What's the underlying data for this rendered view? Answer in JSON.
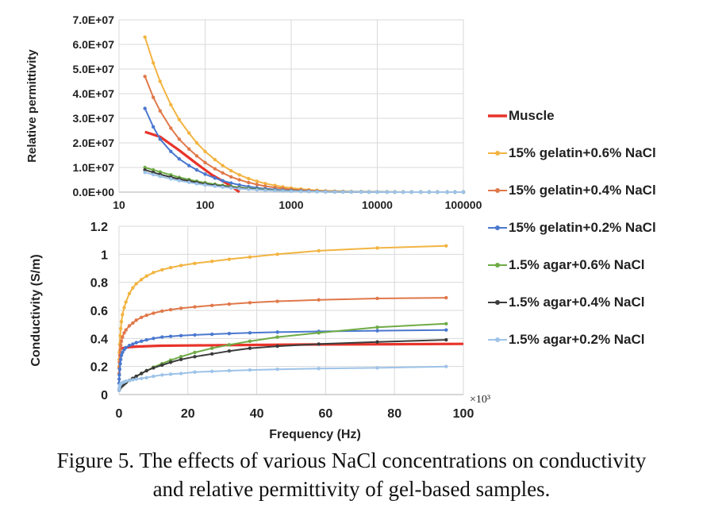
{
  "figure": {
    "caption_line1": "Figure 5. The effects of various NaCl concentrations on conductivity",
    "caption_line2": "and relative permittivity of gel-based samples."
  },
  "legend": [
    {
      "name": "Muscle",
      "color": "#e8332a"
    },
    {
      "name": "15% gelatin+0.6% NaCl",
      "color": "#f2b441"
    },
    {
      "name": "15% gelatin+0.4% NaCl",
      "color": "#e0784a"
    },
    {
      "name": "15% gelatin+0.2% NaCl",
      "color": "#4a78cf"
    },
    {
      "name": "1.5% agar+0.6% NaCl",
      "color": "#6fab45"
    },
    {
      "name": "1.5% agar+0.4% NaCl",
      "color": "#3b3b3b"
    },
    {
      "name": "1.5% agar+0.2% NaCl",
      "color": "#9ec3e8"
    }
  ],
  "chart_data": [
    {
      "type": "line",
      "title": "",
      "xlabel": "",
      "ylabel": "Relative permittivity",
      "xscale": "log",
      "xlim": [
        10,
        100000
      ],
      "ylim": [
        0,
        70000000
      ],
      "x_ticks": [
        "10",
        "100",
        "1000",
        "10000",
        "100000"
      ],
      "y_ticks": [
        "0.0E+00",
        "1.0E+07",
        "2.0E+07",
        "3.0E+07",
        "4.0E+07",
        "5.0E+07",
        "6.0E+07",
        "7.0E+07"
      ],
      "grid": true,
      "series": [
        {
          "name": "Muscle",
          "color": "#e8332a",
          "markers": false,
          "x": [
            20,
            30,
            50,
            80,
            120,
            200,
            250
          ],
          "y": [
            24500000,
            22500000,
            17000000,
            11500000,
            7000000,
            2500000,
            0
          ]
        },
        {
          "name": "15% gelatin+0.6% NaCl",
          "color": "#f2b441",
          "markers": true,
          "x": [
            20,
            25,
            30,
            40,
            50,
            65,
            80,
            100,
            130,
            160,
            200,
            250,
            320,
            400,
            500,
            650,
            800,
            1000,
            1300,
            1600,
            2000,
            2500,
            3200,
            4000,
            5000,
            6500,
            8000,
            10000,
            13000,
            16000,
            20000,
            25000,
            32000,
            40000,
            50000,
            65000,
            80000,
            100000
          ],
          "y": [
            63000000,
            52500000,
            45000000,
            35500000,
            29500000,
            24000000,
            20000000,
            16500000,
            13200000,
            10800000,
            8700000,
            7000000,
            5500000,
            4400000,
            3500000,
            2700000,
            2100000,
            1650000,
            1250000,
            950000,
            700000,
            520000,
            380000,
            280000,
            200000,
            140000,
            100000,
            70000,
            48000,
            34000,
            24000,
            16000,
            11000,
            7000,
            4500,
            3000,
            2000,
            1200
          ]
        },
        {
          "name": "15% gelatin+0.4% NaCl",
          "color": "#e0784a",
          "markers": true,
          "x": [
            20,
            25,
            30,
            40,
            50,
            65,
            80,
            100,
            130,
            160,
            200,
            250,
            320,
            400,
            500,
            650,
            800,
            1000,
            1300,
            1600,
            2000,
            2500,
            3200,
            4000,
            5000,
            6500,
            8000,
            10000,
            13000,
            16000,
            20000,
            25000,
            32000,
            40000,
            50000,
            65000,
            80000,
            100000
          ],
          "y": [
            47000000,
            38500000,
            33000000,
            26000000,
            21500000,
            17500000,
            14700000,
            12000000,
            9500000,
            7800000,
            6200000,
            5000000,
            3900000,
            3100000,
            2400000,
            1850000,
            1450000,
            1100000,
            830000,
            630000,
            470000,
            350000,
            250000,
            180000,
            130000,
            90000,
            65000,
            45000,
            31000,
            22000,
            15000,
            10000,
            7000,
            4500,
            3000,
            2000,
            1300,
            800
          ]
        },
        {
          "name": "15% gelatin+0.2% NaCl",
          "color": "#4a78cf",
          "markers": true,
          "x": [
            20,
            25,
            30,
            40,
            50,
            65,
            80,
            100,
            130,
            160,
            200,
            250,
            320,
            400,
            500,
            650,
            800,
            1000,
            1300,
            1600,
            2000,
            2500,
            3200,
            4000,
            5000,
            6500,
            8000,
            10000,
            13000,
            16000,
            20000,
            25000,
            32000,
            40000,
            50000,
            65000,
            80000,
            100000
          ],
          "y": [
            34000000,
            26500000,
            21500000,
            16500000,
            13500000,
            10800000,
            9000000,
            7300000,
            5700000,
            4600000,
            3700000,
            2900000,
            2250000,
            1750000,
            1350000,
            1020000,
            790000,
            600000,
            450000,
            340000,
            250000,
            185000,
            135000,
            98000,
            70000,
            48000,
            35000,
            24000,
            16500,
            11700,
            8000,
            5500,
            3700,
            2500,
            1700,
            1100,
            750,
            500
          ]
        },
        {
          "name": "1.5% agar+0.6% NaCl",
          "color": "#6fab45",
          "markers": true,
          "x": [
            20,
            25,
            30,
            40,
            50,
            65,
            80,
            100,
            130,
            160,
            200,
            250,
            320,
            400,
            500,
            650,
            800,
            1000,
            1300,
            1600,
            2000,
            2500,
            3200,
            4000,
            5000,
            6500,
            8000,
            10000,
            13000,
            16000,
            20000,
            25000,
            32000,
            40000,
            50000,
            65000,
            80000,
            100000
          ],
          "y": [
            10000000,
            9000000,
            8200000,
            7000000,
            6000000,
            5100000,
            4400000,
            3800000,
            3200000,
            2700000,
            2300000,
            1900000,
            1550000,
            1250000,
            1000000,
            780000,
            620000,
            490000,
            380000,
            300000,
            230000,
            175000,
            130000,
            97000,
            72000,
            52000,
            38000,
            28000,
            20000,
            14500,
            10500,
            7500,
            5300,
            3800,
            2700,
            1900,
            1300,
            900
          ]
        },
        {
          "name": "1.5% agar+0.4% NaCl",
          "color": "#3b3b3b",
          "markers": true,
          "x": [
            20,
            25,
            30,
            40,
            50,
            65,
            80,
            100,
            130,
            160,
            200,
            250,
            320,
            400,
            500,
            650,
            800,
            1000,
            1300,
            1600,
            2000,
            2500,
            3200,
            4000,
            5000,
            6500,
            8000,
            10000,
            13000,
            16000,
            20000,
            25000,
            32000,
            40000,
            50000,
            65000,
            80000,
            100000
          ],
          "y": [
            9000000,
            8000000,
            7200000,
            6100000,
            5300000,
            4500000,
            3900000,
            3300000,
            2750000,
            2350000,
            1950000,
            1620000,
            1300000,
            1060000,
            850000,
            660000,
            525000,
            410000,
            315000,
            248000,
            190000,
            145000,
            108000,
            80000,
            59000,
            42000,
            31000,
            22500,
            16000,
            11700,
            8400,
            6000,
            4200,
            3000,
            2100,
            1500,
            1050,
            700
          ]
        },
        {
          "name": "1.5% agar+0.2% NaCl",
          "color": "#9ec3e8",
          "markers": true,
          "x": [
            20,
            25,
            30,
            40,
            50,
            65,
            80,
            100,
            130,
            160,
            200,
            250,
            320,
            400,
            500,
            650,
            800,
            1000,
            1300,
            1600,
            2000,
            2500,
            3200,
            4000,
            5000,
            6500,
            8000,
            10000,
            13000,
            16000,
            20000,
            25000,
            32000,
            40000,
            50000,
            65000,
            80000,
            100000
          ],
          "y": [
            8000000,
            7100000,
            6400000,
            5400000,
            4650000,
            3950000,
            3400000,
            2900000,
            2400000,
            2050000,
            1700000,
            1400000,
            1130000,
            920000,
            740000,
            575000,
            455000,
            355000,
            272000,
            213000,
            163000,
            124000,
            92000,
            68000,
            50000,
            36000,
            26500,
            19300,
            13700,
            10000,
            7200,
            5100,
            3600,
            2600,
            1800,
            1300,
            900,
            600
          ]
        }
      ]
    },
    {
      "type": "line",
      "title": "",
      "xlabel": "Frequency (Hz)",
      "ylabel": "Conductivity (S/m)",
      "x_multiplier": "×10³",
      "xlim": [
        0,
        100
      ],
      "ylim": [
        0,
        1.2
      ],
      "x_ticks": [
        "0",
        "20",
        "40",
        "60",
        "80",
        "100"
      ],
      "y_ticks": [
        "0",
        "0.2",
        "0.4",
        "0.6",
        "0.8",
        "1",
        "1.2"
      ],
      "grid": true,
      "series": [
        {
          "name": "Muscle",
          "color": "#e8332a",
          "markers": false,
          "x": [
            0,
            0.5,
            1,
            2,
            3,
            5,
            8,
            12,
            20,
            30,
            40,
            50,
            60,
            70,
            80,
            90,
            100
          ],
          "y": [
            0.3,
            0.325,
            0.33,
            0.335,
            0.338,
            0.342,
            0.345,
            0.348,
            0.35,
            0.352,
            0.354,
            0.356,
            0.357,
            0.358,
            0.359,
            0.36,
            0.361
          ]
        },
        {
          "name": "15% gelatin+0.6% NaCl",
          "color": "#f2b441",
          "markers": true,
          "x": [
            0.02,
            0.05,
            0.1,
            0.2,
            0.35,
            0.5,
            0.7,
            1,
            1.5,
            2,
            3,
            4,
            5,
            6.5,
            8,
            10,
            12.5,
            15,
            18,
            22,
            27,
            32,
            38,
            46,
            58,
            75,
            95
          ],
          "y": [
            0.2,
            0.25,
            0.3,
            0.36,
            0.42,
            0.47,
            0.52,
            0.57,
            0.62,
            0.66,
            0.72,
            0.76,
            0.79,
            0.82,
            0.845,
            0.87,
            0.89,
            0.905,
            0.92,
            0.935,
            0.95,
            0.965,
            0.98,
            1.0,
            1.025,
            1.045,
            1.06
          ]
        },
        {
          "name": "15% gelatin+0.4% NaCl",
          "color": "#e0784a",
          "markers": true,
          "x": [
            0.02,
            0.05,
            0.1,
            0.2,
            0.35,
            0.5,
            0.7,
            1,
            1.5,
            2,
            3,
            4,
            5,
            6.5,
            8,
            10,
            12.5,
            15,
            18,
            22,
            27,
            32,
            38,
            46,
            58,
            75,
            95
          ],
          "y": [
            0.15,
            0.19,
            0.23,
            0.28,
            0.32,
            0.35,
            0.38,
            0.41,
            0.44,
            0.46,
            0.49,
            0.51,
            0.53,
            0.55,
            0.565,
            0.58,
            0.595,
            0.605,
            0.615,
            0.625,
            0.635,
            0.645,
            0.655,
            0.665,
            0.675,
            0.685,
            0.69
          ]
        },
        {
          "name": "15% gelatin+0.2% NaCl",
          "color": "#4a78cf",
          "markers": true,
          "x": [
            0.02,
            0.05,
            0.1,
            0.2,
            0.35,
            0.5,
            0.7,
            1,
            1.5,
            2,
            3,
            4,
            5,
            6.5,
            8,
            10,
            12.5,
            15,
            18,
            22,
            27,
            32,
            38,
            46,
            58,
            75,
            95
          ],
          "y": [
            0.08,
            0.11,
            0.14,
            0.18,
            0.22,
            0.25,
            0.28,
            0.3,
            0.32,
            0.335,
            0.35,
            0.36,
            0.37,
            0.38,
            0.39,
            0.4,
            0.41,
            0.415,
            0.42,
            0.425,
            0.43,
            0.435,
            0.44,
            0.445,
            0.45,
            0.455,
            0.46
          ]
        },
        {
          "name": "1.5% agar+0.6% NaCl",
          "color": "#6fab45",
          "markers": true,
          "x": [
            0.02,
            0.05,
            0.1,
            0.2,
            0.35,
            0.5,
            0.7,
            1,
            1.5,
            2,
            3,
            4,
            5,
            6.5,
            8,
            10,
            12.5,
            15,
            18,
            22,
            27,
            32,
            38,
            46,
            58,
            75,
            95
          ],
          "y": [
            0.03,
            0.035,
            0.04,
            0.045,
            0.05,
            0.055,
            0.06,
            0.065,
            0.075,
            0.085,
            0.1,
            0.115,
            0.13,
            0.15,
            0.17,
            0.195,
            0.22,
            0.245,
            0.27,
            0.3,
            0.33,
            0.355,
            0.38,
            0.41,
            0.44,
            0.48,
            0.505
          ]
        },
        {
          "name": "1.5% agar+0.4% NaCl",
          "color": "#3b3b3b",
          "markers": true,
          "x": [
            0.02,
            0.05,
            0.1,
            0.2,
            0.35,
            0.5,
            0.7,
            1,
            1.5,
            2,
            3,
            4,
            5,
            6.5,
            8,
            10,
            12.5,
            15,
            18,
            22,
            27,
            32,
            38,
            46,
            58,
            75,
            95
          ],
          "y": [
            0.03,
            0.035,
            0.04,
            0.045,
            0.05,
            0.055,
            0.06,
            0.065,
            0.075,
            0.085,
            0.1,
            0.115,
            0.13,
            0.15,
            0.17,
            0.19,
            0.21,
            0.23,
            0.25,
            0.27,
            0.29,
            0.31,
            0.33,
            0.345,
            0.36,
            0.375,
            0.39
          ]
        },
        {
          "name": "1.5% agar+0.2% NaCl",
          "color": "#9ec3e8",
          "markers": true,
          "x": [
            0.02,
            0.05,
            0.1,
            0.2,
            0.35,
            0.5,
            0.7,
            1,
            1.5,
            2,
            3,
            4,
            5,
            6.5,
            8,
            10,
            12.5,
            15,
            18,
            22,
            27,
            32,
            38,
            46,
            58,
            75,
            95
          ],
          "y": [
            0.03,
            0.04,
            0.05,
            0.06,
            0.07,
            0.075,
            0.08,
            0.085,
            0.09,
            0.095,
            0.1,
            0.105,
            0.11,
            0.115,
            0.12,
            0.13,
            0.14,
            0.145,
            0.15,
            0.16,
            0.165,
            0.17,
            0.175,
            0.18,
            0.185,
            0.19,
            0.2
          ]
        }
      ]
    }
  ]
}
